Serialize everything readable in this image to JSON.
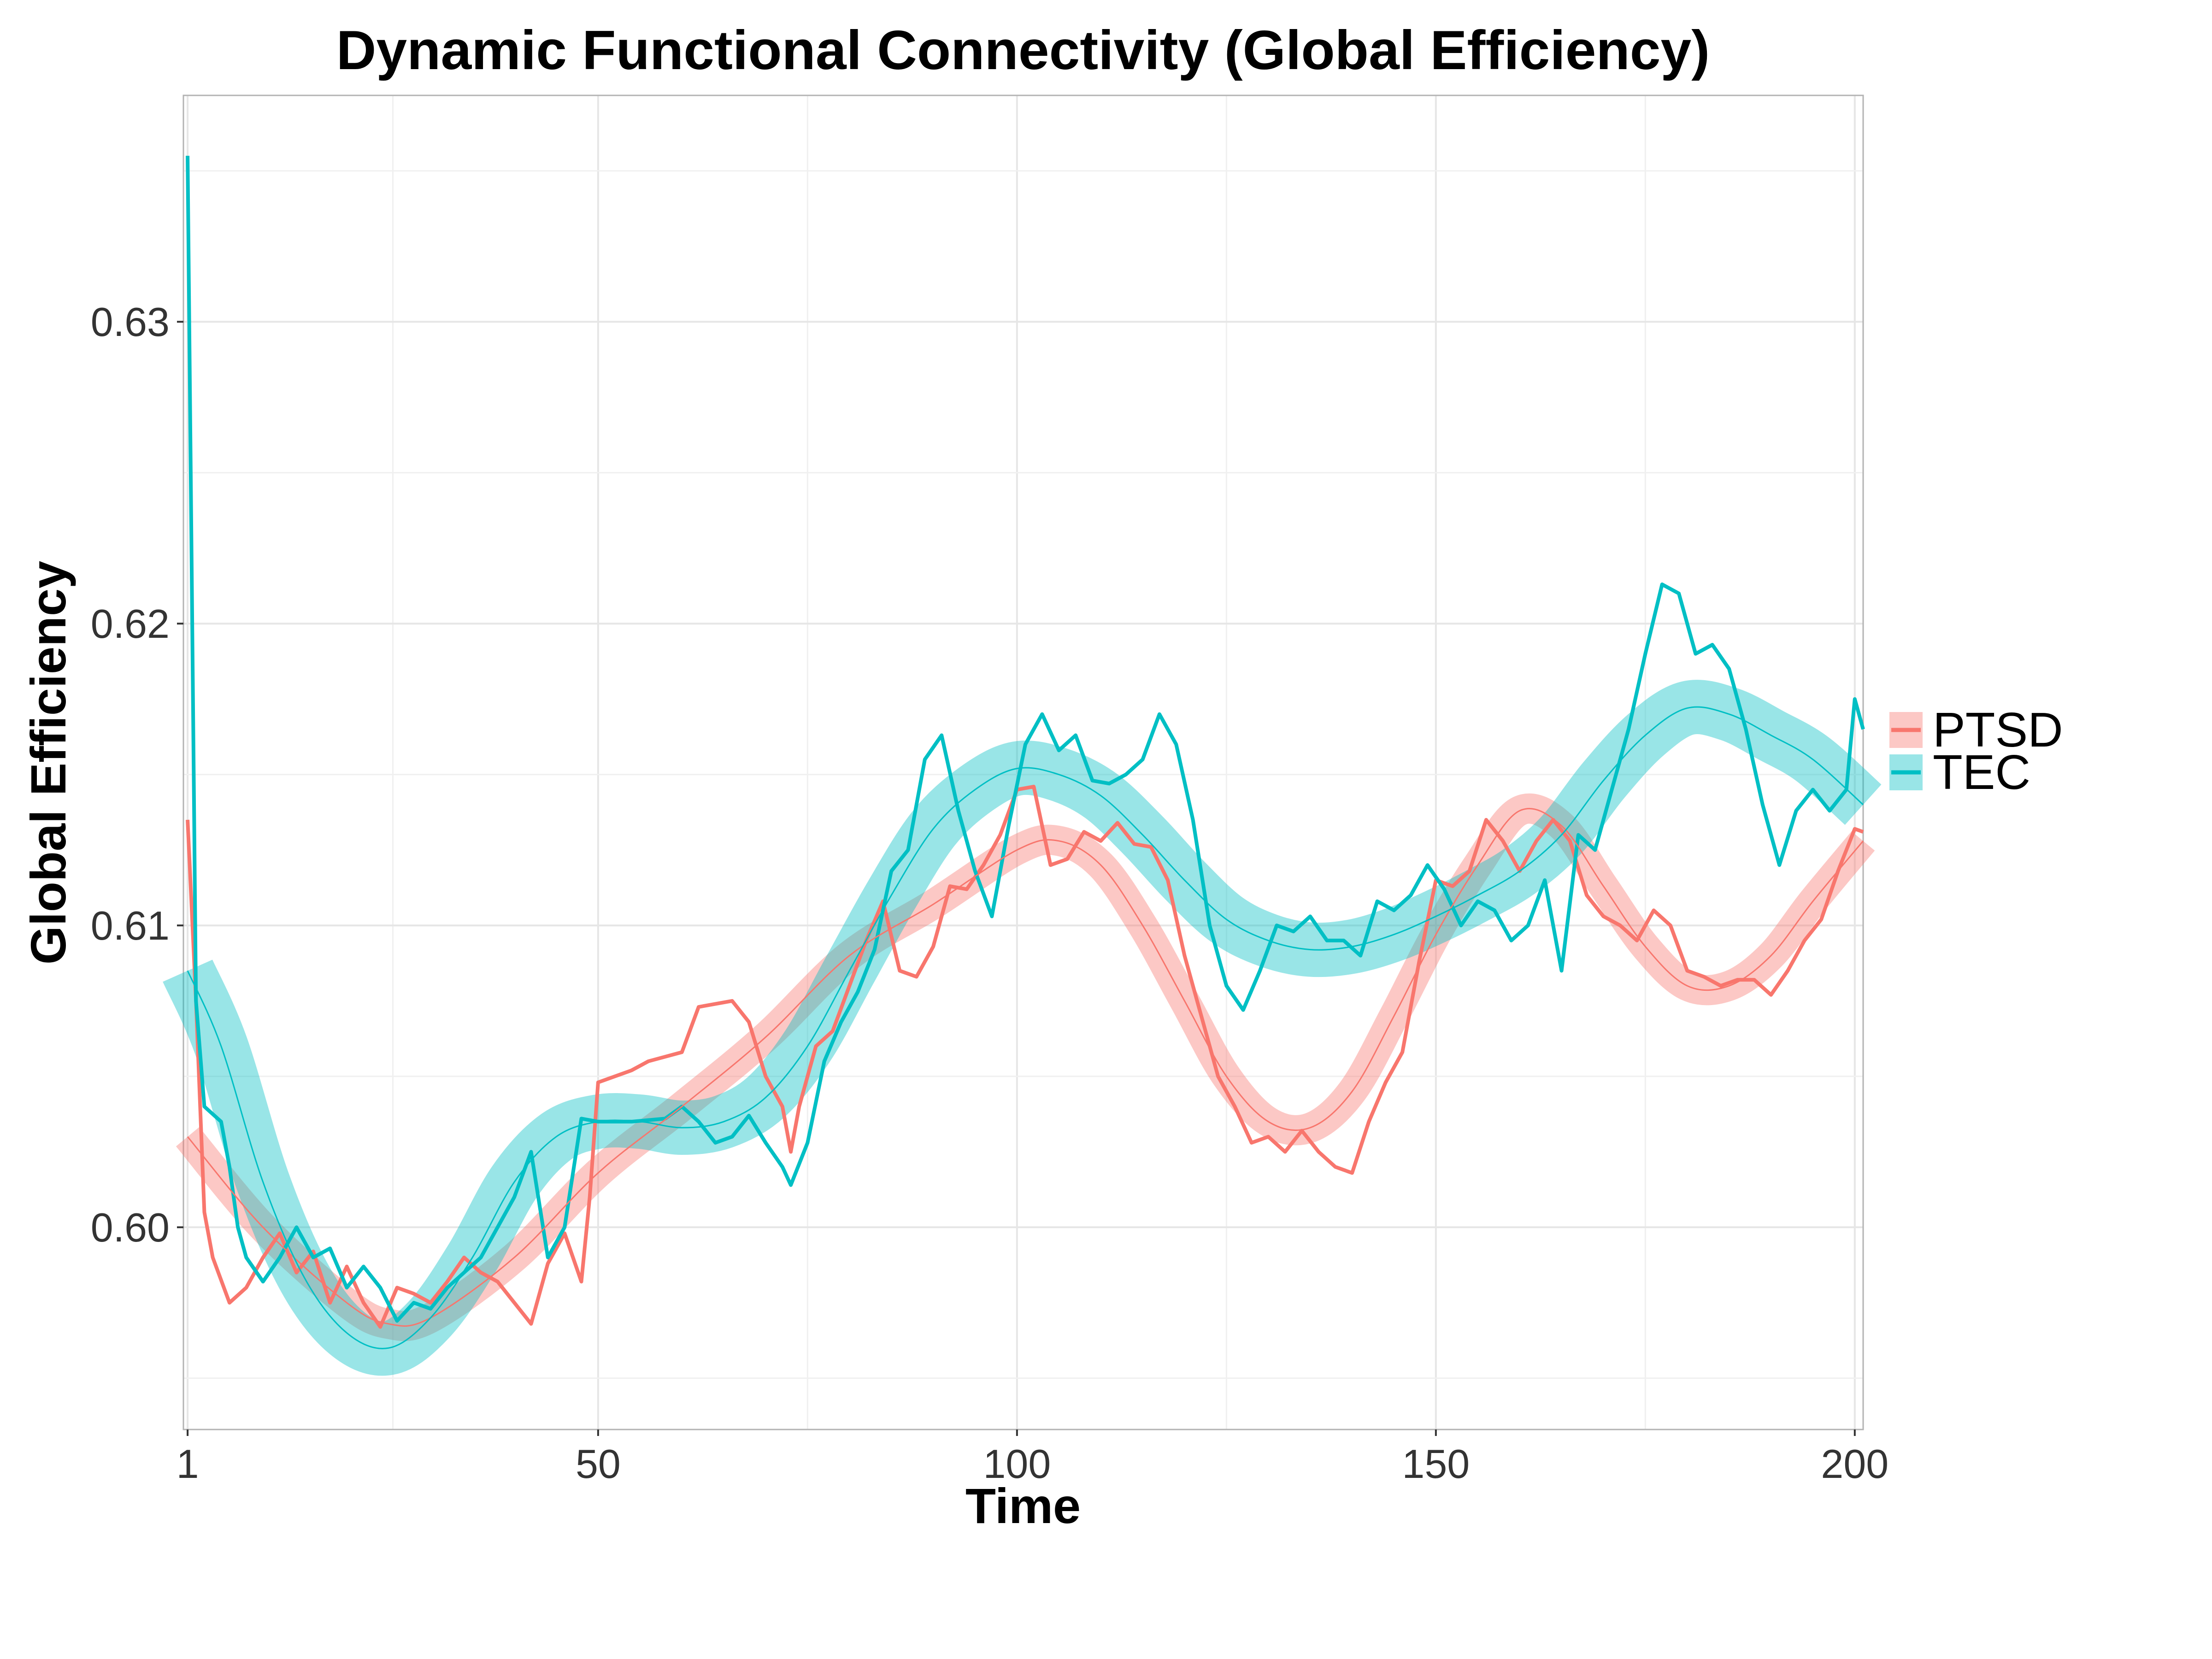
{
  "chart_data": {
    "type": "line",
    "title": "Dynamic Functional Connectivity (Global Efficiency)",
    "xlabel": "Time",
    "ylabel": "Global Efficiency",
    "xlim": [
      0.5,
      201
    ],
    "ylim": [
      0.5933,
      0.6375
    ],
    "x_ticks": [
      1,
      50,
      100,
      150,
      200
    ],
    "x_tick_labels": [
      "1",
      "50",
      "100",
      "150",
      "200"
    ],
    "y_ticks": [
      0.6,
      0.61,
      0.62,
      0.63
    ],
    "y_tick_labels": [
      "0.60",
      "0.61",
      "0.62",
      "0.63"
    ],
    "grid": true,
    "legend": {
      "position": "right",
      "entries": [
        "PTSD",
        "TEC"
      ]
    },
    "series": [
      {
        "name": "PTSD",
        "color": "#F8766D",
        "raw_points": [
          [
            1,
            0.6135
          ],
          [
            2,
            0.6075
          ],
          [
            3,
            0.6005
          ],
          [
            4,
            0.599
          ],
          [
            6,
            0.5975
          ],
          [
            8,
            0.598
          ],
          [
            10,
            0.599
          ],
          [
            12,
            0.5998
          ],
          [
            14,
            0.5985
          ],
          [
            16,
            0.5992
          ],
          [
            18,
            0.5975
          ],
          [
            20,
            0.5987
          ],
          [
            22,
            0.5975
          ],
          [
            24,
            0.5967
          ],
          [
            26,
            0.598
          ],
          [
            28,
            0.5978
          ],
          [
            30,
            0.5975
          ],
          [
            32,
            0.5982
          ],
          [
            34,
            0.599
          ],
          [
            36,
            0.5985
          ],
          [
            38,
            0.5982
          ],
          [
            40,
            0.5975
          ],
          [
            42,
            0.5968
          ],
          [
            44,
            0.5988
          ],
          [
            46,
            0.5998
          ],
          [
            48,
            0.5982
          ],
          [
            49,
            0.601
          ],
          [
            50,
            0.6048
          ],
          [
            54,
            0.6052
          ],
          [
            56,
            0.6055
          ],
          [
            60,
            0.6058
          ],
          [
            62,
            0.6073
          ],
          [
            66,
            0.6075
          ],
          [
            68,
            0.6068
          ],
          [
            70,
            0.605
          ],
          [
            72,
            0.604
          ],
          [
            73,
            0.6025
          ],
          [
            74,
            0.604
          ],
          [
            76,
            0.606
          ],
          [
            78,
            0.6065
          ],
          [
            80,
            0.608
          ],
          [
            82,
            0.6095
          ],
          [
            84,
            0.6108
          ],
          [
            86,
            0.6085
          ],
          [
            88,
            0.6083
          ],
          [
            90,
            0.6093
          ],
          [
            92,
            0.6113
          ],
          [
            94,
            0.6112
          ],
          [
            96,
            0.612
          ],
          [
            98,
            0.613
          ],
          [
            100,
            0.6145
          ],
          [
            102,
            0.6146
          ],
          [
            104,
            0.612
          ],
          [
            106,
            0.6122
          ],
          [
            108,
            0.6131
          ],
          [
            110,
            0.6128
          ],
          [
            112,
            0.6134
          ],
          [
            114,
            0.6127
          ],
          [
            116,
            0.6126
          ],
          [
            118,
            0.6115
          ],
          [
            120,
            0.609
          ],
          [
            122,
            0.607
          ],
          [
            124,
            0.605
          ],
          [
            126,
            0.604
          ],
          [
            128,
            0.6028
          ],
          [
            130,
            0.603
          ],
          [
            132,
            0.6025
          ],
          [
            134,
            0.6032
          ],
          [
            136,
            0.6025
          ],
          [
            138,
            0.602
          ],
          [
            140,
            0.6018
          ],
          [
            142,
            0.6035
          ],
          [
            144,
            0.6048
          ],
          [
            146,
            0.6058
          ],
          [
            148,
            0.6088
          ],
          [
            150,
            0.6115
          ],
          [
            152,
            0.6113
          ],
          [
            154,
            0.6118
          ],
          [
            156,
            0.6135
          ],
          [
            158,
            0.6128
          ],
          [
            160,
            0.6118
          ],
          [
            162,
            0.6128
          ],
          [
            164,
            0.6135
          ],
          [
            166,
            0.6128
          ],
          [
            168,
            0.611
          ],
          [
            170,
            0.6103
          ],
          [
            172,
            0.61
          ],
          [
            174,
            0.6095
          ],
          [
            176,
            0.6105
          ],
          [
            178,
            0.61
          ],
          [
            180,
            0.6085
          ],
          [
            182,
            0.6083
          ],
          [
            184,
            0.608
          ],
          [
            186,
            0.6082
          ],
          [
            188,
            0.6082
          ],
          [
            190,
            0.6077
          ],
          [
            192,
            0.6085
          ],
          [
            194,
            0.6095
          ],
          [
            196,
            0.6102
          ],
          [
            198,
            0.6118
          ],
          [
            200,
            0.6132
          ],
          [
            201,
            0.6131
          ]
        ],
        "smooth_points": [
          [
            1,
            0.603
          ],
          [
            10,
            0.6
          ],
          [
            20,
            0.5975
          ],
          [
            25,
            0.5968
          ],
          [
            30,
            0.597
          ],
          [
            40,
            0.599
          ],
          [
            50,
            0.6018
          ],
          [
            60,
            0.604
          ],
          [
            70,
            0.6063
          ],
          [
            80,
            0.609
          ],
          [
            90,
            0.6107
          ],
          [
            100,
            0.6125
          ],
          [
            105,
            0.6128
          ],
          [
            110,
            0.612
          ],
          [
            115,
            0.61
          ],
          [
            120,
            0.6075
          ],
          [
            125,
            0.605
          ],
          [
            130,
            0.6035
          ],
          [
            135,
            0.6033
          ],
          [
            140,
            0.6045
          ],
          [
            145,
            0.607
          ],
          [
            150,
            0.6097
          ],
          [
            155,
            0.612
          ],
          [
            160,
            0.6138
          ],
          [
            165,
            0.6133
          ],
          [
            170,
            0.6113
          ],
          [
            175,
            0.6093
          ],
          [
            180,
            0.608
          ],
          [
            185,
            0.608
          ],
          [
            190,
            0.609
          ],
          [
            195,
            0.6108
          ],
          [
            201,
            0.6128
          ]
        ],
        "band_halfwidth": 0.0005
      },
      {
        "name": "TEC",
        "color": "#00BFC4",
        "raw_points": [
          [
            1,
            0.6355
          ],
          [
            2,
            0.6075
          ],
          [
            3,
            0.604
          ],
          [
            5,
            0.6035
          ],
          [
            6,
            0.602
          ],
          [
            7,
            0.6
          ],
          [
            8,
            0.599
          ],
          [
            10,
            0.5982
          ],
          [
            12,
            0.599
          ],
          [
            14,
            0.6
          ],
          [
            16,
            0.599
          ],
          [
            18,
            0.5993
          ],
          [
            20,
            0.598
          ],
          [
            22,
            0.5987
          ],
          [
            24,
            0.598
          ],
          [
            26,
            0.5969
          ],
          [
            28,
            0.5975
          ],
          [
            30,
            0.5973
          ],
          [
            32,
            0.598
          ],
          [
            34,
            0.5985
          ],
          [
            36,
            0.599
          ],
          [
            38,
            0.6
          ],
          [
            40,
            0.601
          ],
          [
            42,
            0.6025
          ],
          [
            44,
            0.599
          ],
          [
            46,
            0.6
          ],
          [
            48,
            0.6036
          ],
          [
            50,
            0.6035
          ],
          [
            54,
            0.6035
          ],
          [
            58,
            0.6036
          ],
          [
            60,
            0.604
          ],
          [
            62,
            0.6035
          ],
          [
            64,
            0.6028
          ],
          [
            66,
            0.603
          ],
          [
            68,
            0.6037
          ],
          [
            70,
            0.6028
          ],
          [
            72,
            0.602
          ],
          [
            73,
            0.6014
          ],
          [
            75,
            0.6028
          ],
          [
            77,
            0.6055
          ],
          [
            79,
            0.6068
          ],
          [
            81,
            0.6078
          ],
          [
            83,
            0.6092
          ],
          [
            85,
            0.6118
          ],
          [
            87,
            0.6125
          ],
          [
            89,
            0.6155
          ],
          [
            91,
            0.6163
          ],
          [
            93,
            0.6138
          ],
          [
            95,
            0.6118
          ],
          [
            97,
            0.6103
          ],
          [
            99,
            0.6133
          ],
          [
            101,
            0.616
          ],
          [
            103,
            0.617
          ],
          [
            105,
            0.6158
          ],
          [
            107,
            0.6163
          ],
          [
            109,
            0.6148
          ],
          [
            111,
            0.6147
          ],
          [
            113,
            0.615
          ],
          [
            115,
            0.6155
          ],
          [
            117,
            0.617
          ],
          [
            119,
            0.616
          ],
          [
            121,
            0.6135
          ],
          [
            123,
            0.61
          ],
          [
            125,
            0.608
          ],
          [
            127,
            0.6072
          ],
          [
            129,
            0.6085
          ],
          [
            131,
            0.61
          ],
          [
            133,
            0.6098
          ],
          [
            135,
            0.6103
          ],
          [
            137,
            0.6095
          ],
          [
            139,
            0.6095
          ],
          [
            141,
            0.609
          ],
          [
            143,
            0.6108
          ],
          [
            145,
            0.6105
          ],
          [
            147,
            0.611
          ],
          [
            149,
            0.612
          ],
          [
            151,
            0.6112
          ],
          [
            153,
            0.61
          ],
          [
            155,
            0.6108
          ],
          [
            157,
            0.6105
          ],
          [
            159,
            0.6095
          ],
          [
            161,
            0.61
          ],
          [
            163,
            0.6115
          ],
          [
            165,
            0.6085
          ],
          [
            167,
            0.613
          ],
          [
            169,
            0.6125
          ],
          [
            171,
            0.6145
          ],
          [
            173,
            0.6165
          ],
          [
            175,
            0.619
          ],
          [
            177,
            0.6213
          ],
          [
            179,
            0.621
          ],
          [
            181,
            0.619
          ],
          [
            183,
            0.6193
          ],
          [
            185,
            0.6185
          ],
          [
            187,
            0.6165
          ],
          [
            189,
            0.614
          ],
          [
            191,
            0.612
          ],
          [
            193,
            0.6138
          ],
          [
            195,
            0.6145
          ],
          [
            197,
            0.6138
          ],
          [
            199,
            0.6145
          ],
          [
            200,
            0.6175
          ],
          [
            201,
            0.6165
          ]
        ],
        "smooth_points": [
          [
            1,
            0.6085
          ],
          [
            5,
            0.606
          ],
          [
            10,
            0.6015
          ],
          [
            15,
            0.5983
          ],
          [
            20,
            0.5965
          ],
          [
            25,
            0.596
          ],
          [
            30,
            0.597
          ],
          [
            35,
            0.599
          ],
          [
            40,
            0.6015
          ],
          [
            45,
            0.603
          ],
          [
            50,
            0.6035
          ],
          [
            55,
            0.6035
          ],
          [
            60,
            0.6033
          ],
          [
            65,
            0.6035
          ],
          [
            70,
            0.6043
          ],
          [
            75,
            0.606
          ],
          [
            80,
            0.6085
          ],
          [
            85,
            0.611
          ],
          [
            90,
            0.6132
          ],
          [
            95,
            0.6145
          ],
          [
            100,
            0.6152
          ],
          [
            105,
            0.615
          ],
          [
            110,
            0.6143
          ],
          [
            115,
            0.613
          ],
          [
            120,
            0.6115
          ],
          [
            125,
            0.6102
          ],
          [
            130,
            0.6095
          ],
          [
            135,
            0.6092
          ],
          [
            140,
            0.6093
          ],
          [
            145,
            0.6097
          ],
          [
            150,
            0.6103
          ],
          [
            155,
            0.611
          ],
          [
            160,
            0.6118
          ],
          [
            165,
            0.613
          ],
          [
            170,
            0.6148
          ],
          [
            175,
            0.6163
          ],
          [
            180,
            0.6172
          ],
          [
            185,
            0.617
          ],
          [
            190,
            0.6163
          ],
          [
            195,
            0.6155
          ],
          [
            201,
            0.614
          ]
        ],
        "band_halfwidth": 0.0009
      }
    ]
  }
}
